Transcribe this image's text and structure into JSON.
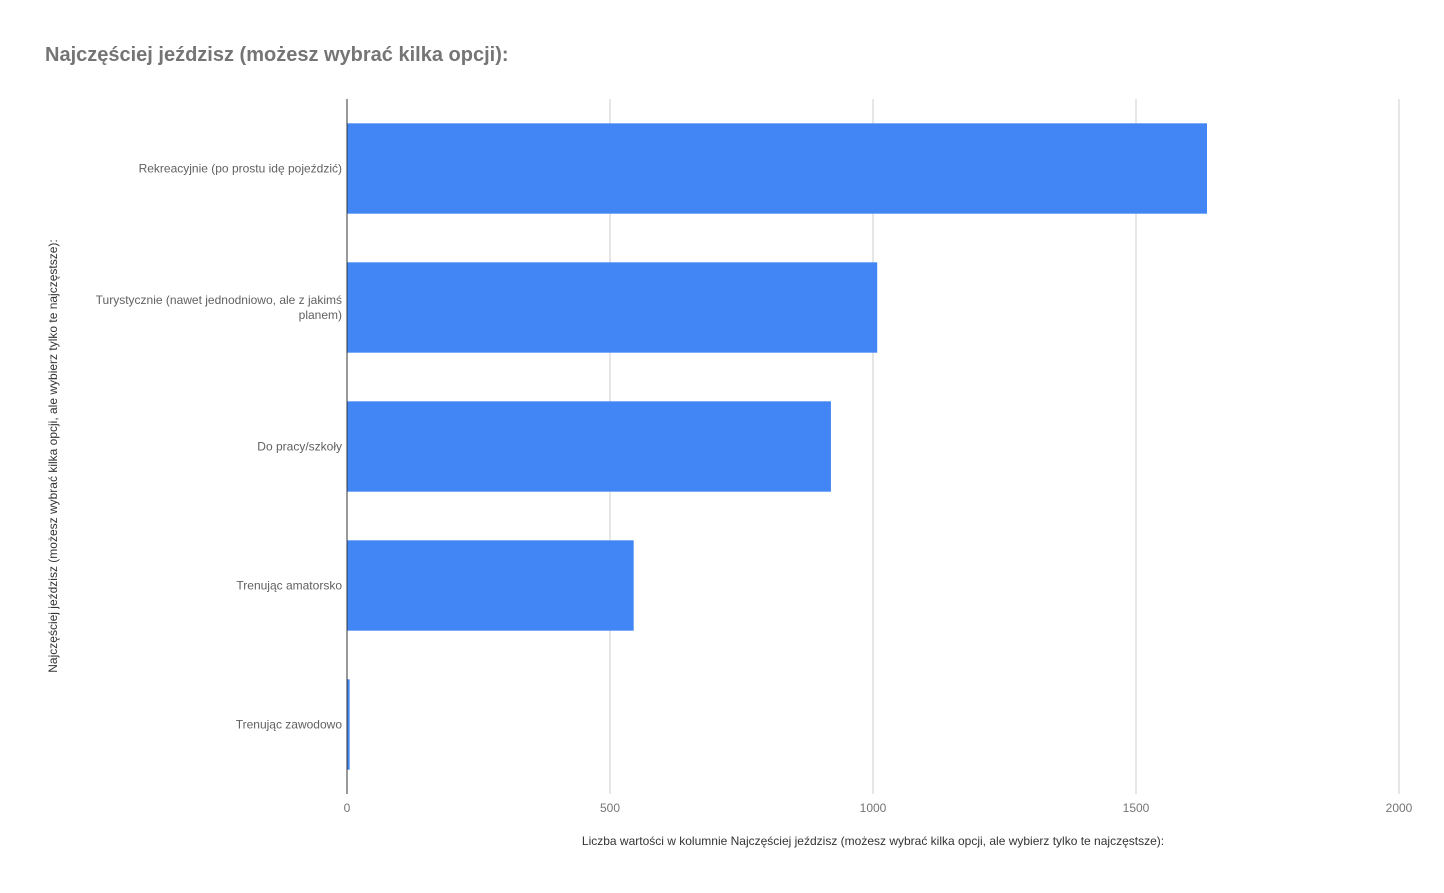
{
  "chart_data": {
    "type": "bar",
    "orientation": "horizontal",
    "title": "Najczęściej jeździsz (możesz wybrać kilka opcji):",
    "xlabel": "Liczba wartości w kolumnie Najczęściej jeździsz (możesz wybrać kilka opcji, ale wybierz tylko te najczęstsze):",
    "ylabel": "Najczęściej jeździsz (możesz wybrać kilka opcji, ale wybierz tylko te najczęstsze):",
    "categories": [
      [
        "Rekreacyjnie (po prostu idę pojeździć)"
      ],
      [
        "Turystycznie (nawet jednodniowo, ale z jakimś",
        "planem)"
      ],
      [
        "Do pracy/szkoły"
      ],
      [
        "Trenując amatorsko"
      ],
      [
        "Trenując zawodowo"
      ]
    ],
    "values": [
      1635,
      1008,
      920,
      545,
      5
    ],
    "xlim": [
      0,
      2000
    ],
    "xticks": [
      "0",
      "500",
      "1000",
      "1500",
      "2000"
    ],
    "grid": true,
    "bar_color": "#4285f4"
  }
}
